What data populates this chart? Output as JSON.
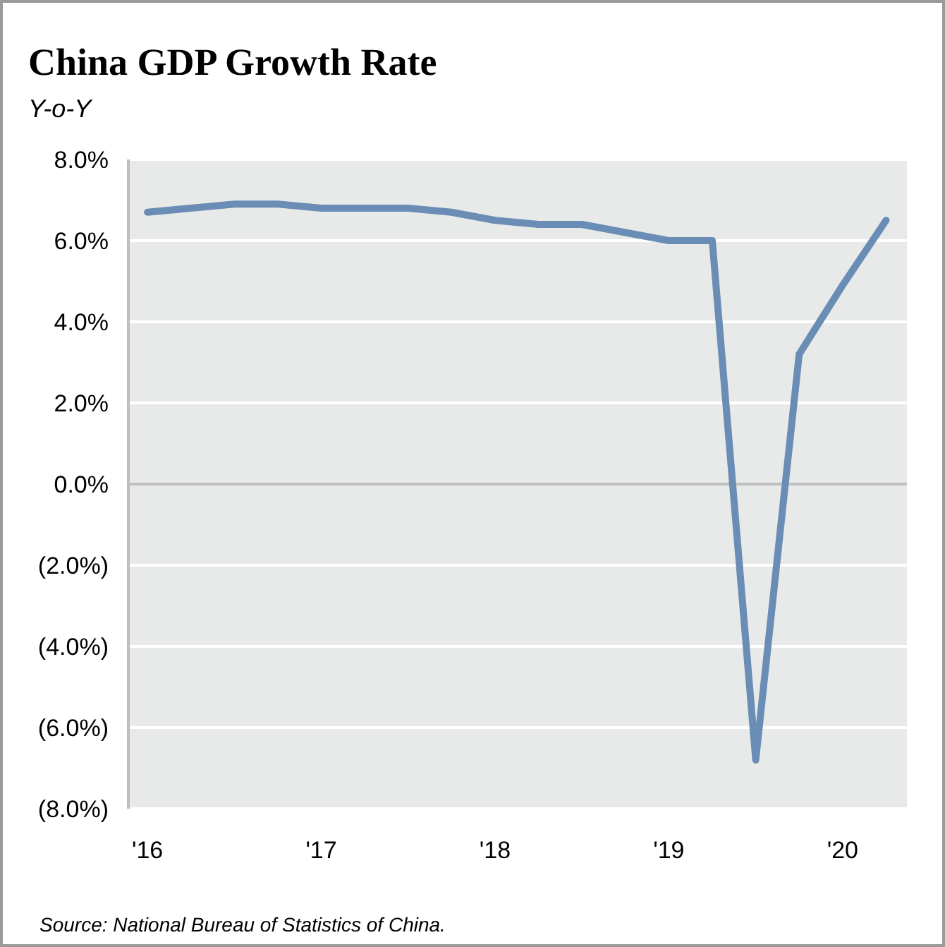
{
  "chart_data": {
    "type": "line",
    "title": "China GDP Growth Rate",
    "subtitle": "Y-o-Y",
    "x": [
      2016,
      2016.25,
      2016.5,
      2016.75,
      2017,
      2017.25,
      2017.5,
      2017.75,
      2018,
      2018.25,
      2018.5,
      2018.75,
      2019,
      2019.25,
      2019.5,
      2019.75,
      2020,
      2020.25
    ],
    "series": [
      {
        "color": "#6a8db5",
        "values": [
          6.7,
          6.8,
          6.9,
          6.9,
          6.8,
          6.8,
          6.8,
          6.7,
          6.5,
          6.4,
          6.4,
          6.2,
          6.0,
          6.0,
          -6.8,
          3.2,
          4.9,
          6.5
        ]
      }
    ],
    "xlim": [
      2015.89,
      2020.37
    ],
    "xticks": [
      {
        "value": 2016,
        "label": "'16"
      },
      {
        "value": 2017,
        "label": "'17"
      },
      {
        "value": 2018,
        "label": "'18"
      },
      {
        "value": 2019,
        "label": "'19"
      },
      {
        "value": 2020,
        "label": "'20"
      }
    ],
    "ylim": [
      -8,
      8
    ],
    "yticks": [
      {
        "value": -8,
        "label": "(8.0%)"
      },
      {
        "value": -6,
        "label": "(6.0%)"
      },
      {
        "value": -4,
        "label": "(4.0%)"
      },
      {
        "value": -2,
        "label": "(2.0%)"
      },
      {
        "value": 0,
        "label": "0.0%"
      },
      {
        "value": 2,
        "label": "2.0%"
      },
      {
        "value": 4,
        "label": "4.0%"
      },
      {
        "value": 6,
        "label": "6.0%"
      },
      {
        "value": 8,
        "label": "8.0%"
      }
    ],
    "grid": "y",
    "marker": "none",
    "line_style": "solid",
    "ref_lines": [
      {
        "axis": "y",
        "value": 0,
        "color": "#bfbfbf"
      }
    ],
    "annotations": [
      "Source: National Bureau of Statistics of China."
    ]
  }
}
